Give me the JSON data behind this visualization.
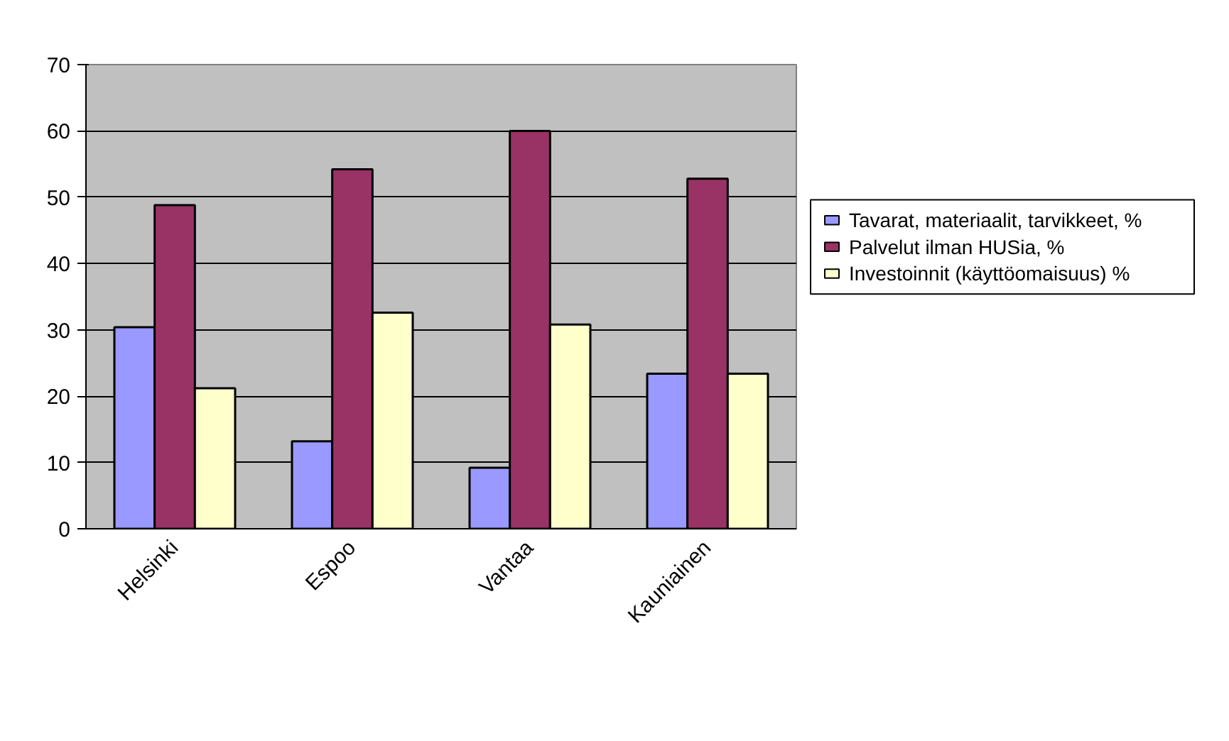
{
  "chart_data": {
    "type": "bar",
    "categories": [
      "Helsinki",
      "Espoo",
      "Vantaa",
      "Kauniainen"
    ],
    "series": [
      {
        "name": "Tavarat, materiaalit, tarvikkeet, %",
        "color": "#9999ff",
        "values": [
          30.4,
          13.2,
          9.2,
          23.4
        ]
      },
      {
        "name": "Palvelut ilman HUSia, %",
        "color": "#993366",
        "values": [
          48.8,
          54.2,
          60.0,
          52.8
        ]
      },
      {
        "name": "Investoinnit (käyttöomaisuus) %",
        "color": "#ffffcc",
        "values": [
          21.2,
          32.6,
          30.8,
          23.4
        ]
      }
    ],
    "ylim": [
      0,
      70
    ],
    "yticks": [
      0,
      10,
      20,
      30,
      40,
      50,
      60,
      70
    ],
    "grid": "y",
    "legend": "right"
  }
}
